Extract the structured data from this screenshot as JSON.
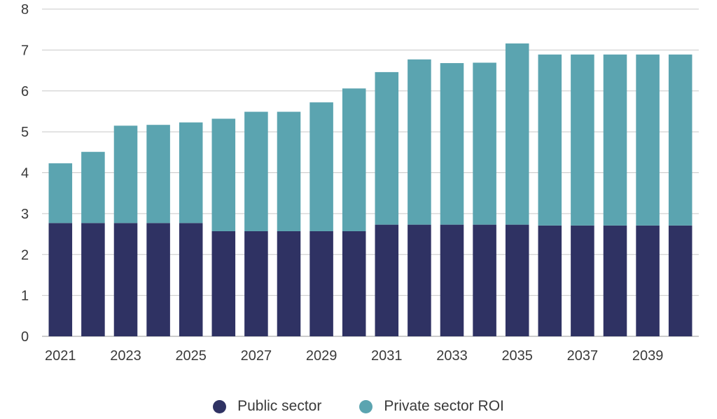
{
  "chart_data": {
    "type": "bar",
    "stacked": true,
    "title": "",
    "xlabel": "",
    "ylabel": "",
    "ylim": [
      0,
      8
    ],
    "yticks": [
      0,
      1,
      2,
      3,
      4,
      5,
      6,
      7,
      8
    ],
    "grid": true,
    "legend_position": "bottom",
    "categories": [
      "2021",
      "2022",
      "2023",
      "2024",
      "2025",
      "2026",
      "2027",
      "2028",
      "2029",
      "2030",
      "2031",
      "2032",
      "2033",
      "2034",
      "2035",
      "2036",
      "2037",
      "2038",
      "2039",
      "2040"
    ],
    "x_tick_labels": [
      "2021",
      "2023",
      "2025",
      "2027",
      "2029",
      "2031",
      "2033",
      "2035",
      "2037",
      "2039"
    ],
    "series": [
      {
        "name": "Public sector",
        "color": "#2f3263",
        "values": [
          2.77,
          2.77,
          2.77,
          2.77,
          2.77,
          2.57,
          2.57,
          2.57,
          2.57,
          2.57,
          2.73,
          2.73,
          2.73,
          2.73,
          2.73,
          2.71,
          2.71,
          2.71,
          2.71,
          2.71
        ]
      },
      {
        "name": "Private sector ROI",
        "color": "#5ba4b0",
        "values": [
          1.46,
          1.74,
          2.38,
          2.4,
          2.46,
          2.75,
          2.92,
          2.92,
          3.15,
          3.49,
          3.73,
          4.04,
          3.95,
          3.96,
          4.43,
          4.18,
          4.18,
          4.18,
          4.18,
          4.18
        ]
      }
    ]
  }
}
